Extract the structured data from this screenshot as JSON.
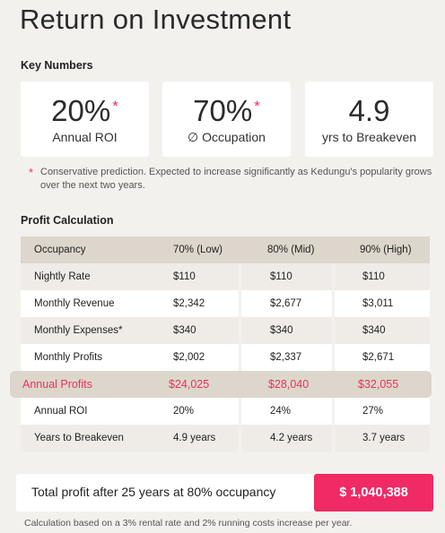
{
  "page": {
    "title": "Return on Investment"
  },
  "key_numbers": {
    "heading": "Key Numbers",
    "cards": [
      {
        "value": "20%",
        "star": "*",
        "label": "Annual ROI"
      },
      {
        "value": "70%",
        "star": "*",
        "label": "∅ Occupation"
      },
      {
        "value": "4.9",
        "star": "",
        "label": "yrs to Breakeven"
      }
    ],
    "note_star": "*",
    "note": "Conservative prediction. Expected to increase significantly as Kedungu's popularity grows over the next two years."
  },
  "profit": {
    "heading": "Profit Calculation",
    "header": [
      "Occupancy",
      "70% (Low)",
      "80% (Mid)",
      "90% (High)"
    ],
    "rows": [
      [
        "Nightly Rate",
        "$110",
        "$110",
        "$110"
      ],
      [
        "Monthly Revenue",
        "$2,342",
        "$2,677",
        "$3,011"
      ],
      [
        "Monthly Expenses*",
        "$340",
        "$340",
        "$340"
      ],
      [
        "Monthly Profits",
        "$2,002",
        "$2,337",
        "$2,671"
      ]
    ],
    "annual": [
      "Annual Profits",
      "$24,025",
      "$28,040",
      "$32,055"
    ],
    "rows_after": [
      [
        "Annual ROI",
        "20%",
        "24%",
        "27%"
      ],
      [
        "Years to Breakeven",
        "4.9 years",
        "4.2 years",
        "3.7 years"
      ]
    ]
  },
  "total": {
    "label": "Total profit after 25 years at 80% occupancy",
    "value": "$ 1,040,388"
  },
  "footnote": "Calculation based on a 3% rental rate and 2% running costs increase per year.",
  "colors": {
    "accent": "#f02a63",
    "band": "#ddd6cc",
    "background": "#f3f1ee"
  }
}
